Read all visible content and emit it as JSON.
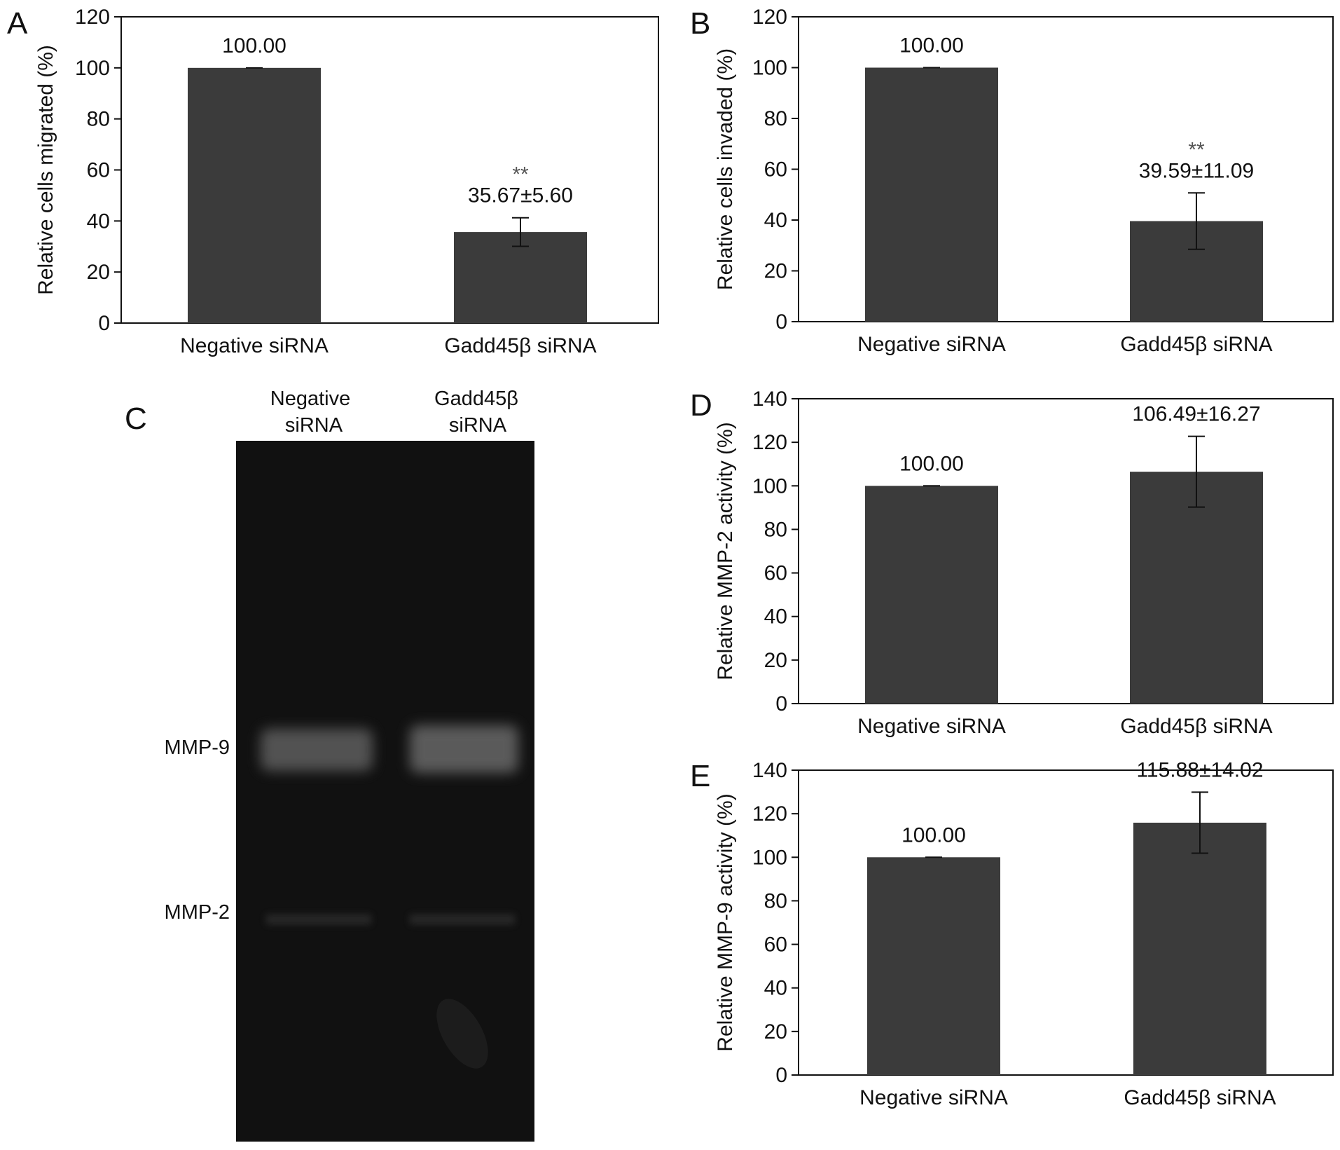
{
  "colors": {
    "bar": "#3b3b3b",
    "axis": "#111111",
    "gel_bg": "#111111",
    "band": "#9a9a9a"
  },
  "chart_data": [
    {
      "panel": "A",
      "type": "bar",
      "categories": [
        "Negative siRNA",
        "Gadd45β siRNA"
      ],
      "values": [
        100.0,
        35.67
      ],
      "errors": [
        0,
        5.6
      ],
      "labels": [
        "100.00",
        "35.67±5.60"
      ],
      "significance": [
        "",
        "**"
      ],
      "ylabel": "Relative cells migrated (%)",
      "ylim": [
        0,
        120
      ],
      "yticks": [
        0,
        20,
        40,
        60,
        80,
        100,
        120
      ],
      "ytick_labels": [
        "0",
        "20",
        "40",
        "60",
        "80",
        "100",
        "120"
      ]
    },
    {
      "panel": "B",
      "type": "bar",
      "categories": [
        "Negative siRNA",
        "Gadd45β siRNA"
      ],
      "values": [
        100.0,
        39.59
      ],
      "errors": [
        0,
        11.09
      ],
      "labels": [
        "100.00",
        "39.59±11.09"
      ],
      "significance": [
        "",
        "**"
      ],
      "ylabel": "Relative cells invaded (%)",
      "ylim": [
        0,
        120
      ],
      "yticks": [
        0,
        20,
        40,
        60,
        80,
        100,
        120
      ],
      "ytick_labels": [
        "0",
        "20",
        "40",
        "60",
        "80",
        "100",
        "120"
      ]
    },
    {
      "panel": "D",
      "type": "bar",
      "categories": [
        "Negative siRNA",
        "Gadd45β siRNA"
      ],
      "values": [
        100.0,
        106.49
      ],
      "errors": [
        0,
        16.27
      ],
      "labels": [
        "100.00",
        "106.49±16.27"
      ],
      "significance": [
        "",
        ""
      ],
      "ylabel": "Relative MMP-2 activity (%)",
      "ylim": [
        0,
        140
      ],
      "yticks": [
        0,
        20,
        40,
        60,
        80,
        100,
        120,
        140
      ],
      "ytick_labels": [
        "0",
        "20",
        "40",
        "60",
        "80",
        "100",
        "120",
        "140"
      ]
    },
    {
      "panel": "E",
      "type": "bar",
      "categories": [
        "Negative siRNA",
        "Gadd45β siRNA"
      ],
      "values": [
        100.0,
        115.88
      ],
      "errors": [
        0,
        14.02
      ],
      "labels": [
        "100.00",
        "115.88±14.02"
      ],
      "significance": [
        "",
        ""
      ],
      "ylabel": "Relative MMP-9 activity (%)",
      "ylim": [
        0,
        140
      ],
      "yticks": [
        0,
        20,
        40,
        60,
        80,
        100,
        120,
        140
      ],
      "ytick_labels": [
        "0",
        "20",
        "40",
        "60",
        "80",
        "100",
        "120",
        "140"
      ]
    }
  ],
  "gel": {
    "panel": "C",
    "lanes": [
      {
        "line1": "Negative",
        "line2": "siRNA"
      },
      {
        "line1": "Gadd45β",
        "line2": "siRNA"
      }
    ],
    "bands": [
      "MMP-9",
      "MMP-2"
    ]
  }
}
